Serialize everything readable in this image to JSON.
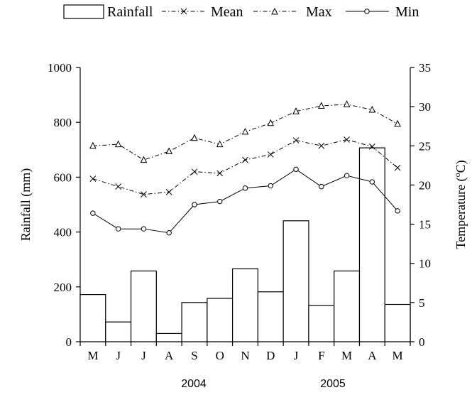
{
  "chart_data": {
    "type": "bar",
    "categories": [
      "M",
      "J",
      "J",
      "A",
      "S",
      "O",
      "N",
      "D",
      "J",
      "F",
      "M",
      "A",
      "M"
    ],
    "year_labels": [
      "2004",
      "2005"
    ],
    "series": [
      {
        "name": "Rainfall",
        "type": "bar",
        "axis": "left",
        "values": [
          172,
          72,
          258,
          30,
          143,
          158,
          266,
          182,
          441,
          132,
          258,
          707,
          136
        ]
      },
      {
        "name": "Mean",
        "type": "line",
        "axis": "right",
        "marker": "x",
        "values": [
          20.8,
          19.8,
          18.8,
          19.1,
          21.7,
          21.5,
          23.2,
          23.9,
          25.7,
          25.0,
          25.8,
          24.9,
          22.2
        ]
      },
      {
        "name": "Max",
        "type": "line",
        "axis": "right",
        "marker": "triangle",
        "values": [
          25.0,
          25.2,
          23.2,
          24.3,
          26.0,
          25.2,
          26.8,
          27.9,
          29.4,
          30.1,
          30.3,
          29.6,
          27.8
        ]
      },
      {
        "name": "Min",
        "type": "line",
        "axis": "right",
        "marker": "circle",
        "values": [
          16.4,
          14.4,
          14.4,
          13.9,
          17.5,
          17.9,
          19.6,
          19.9,
          22.0,
          19.8,
          21.2,
          20.4,
          16.7
        ]
      }
    ],
    "y_left": {
      "label": "Rainfall (mm)",
      "range": [
        0,
        1000
      ],
      "ticks": [
        "0",
        "200",
        "400",
        "600",
        "800",
        "1000"
      ]
    },
    "y_right": {
      "label_main": "Temperature (",
      "label_sup": "o",
      "label_end": "C)",
      "range": [
        0,
        35
      ],
      "ticks": [
        "0",
        "5",
        "10",
        "15",
        "20",
        "25",
        "30",
        "35"
      ]
    },
    "grid": false,
    "legend_position": "top"
  }
}
